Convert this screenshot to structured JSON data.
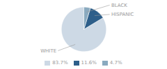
{
  "chart_data": {
    "type": "pie",
    "categories": [
      "WHITE",
      "HISPANIC",
      "BLACK"
    ],
    "values": [
      83.7,
      11.6,
      4.7
    ],
    "value_labels": [
      "83.7%",
      "11.6%",
      "4.7%"
    ],
    "colors": [
      "#cdd9e5",
      "#2e5f8a",
      "#8aaabf"
    ],
    "legend": "bottom"
  }
}
